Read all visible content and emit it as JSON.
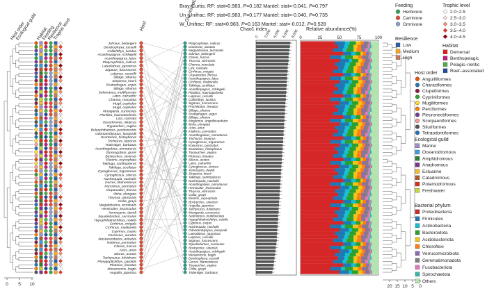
{
  "stats": [
    {
      "label": "Bray-Curtis: RF: stat=0.983, ",
      "p1": "P",
      "v1": "=0.182 Mantel: stat=-0.041, ",
      "p2": "P",
      "v2": "=0.797"
    },
    {
      "label": "Un_Unifrac: RF: stat=0.983, ",
      "p1": "P",
      "v1": "=0.177 Mantel: stat=-0.040, ",
      "p2": "P",
      "v2": "=0.735"
    },
    {
      "label": "W_Unifrac: RF: stat=0.983, ",
      "p1": "P",
      "v1": "=0.163 Mantel: stat=-0.012, ",
      "p2": "P",
      "v2": "=0.528"
    }
  ],
  "headers": {
    "host": "Host",
    "gut": "Gut microbiota",
    "chao": "Chao1 index",
    "rel": "Relative abundance(%)",
    "trophic_cols": [
      "Trophic level",
      "Resilience",
      "Feeding",
      "Habitat"
    ],
    "eco_cols": [
      "Ecological guild",
      "Host order"
    ]
  },
  "host_species": [
    "Johnius_belangerii",
    "Dendrophysa_russelli",
    "Collichthys_lucidus",
    "Acanthopagrus_schlegelii",
    "Acanthopagrus_latus",
    "Platycephalus_indicus",
    "Lateolabrax_japonicus",
    "Siganus_fuscescens",
    "Lutjanus_russellii",
    "Sillago_sihama",
    "Siniperca_knerii",
    "Scatophagus_argus",
    "Sillago_sihama",
    "Selenotoca_multifasciata",
    "Lates_calcarifer",
    "Channa_maculata",
    "Mugil_cephalus",
    "Mugil_cephalus",
    "Mooigarda_cunnesius",
    "Planiliza_haematocheila",
    "Liza_carinata",
    "Oreochromis_niloticus",
    "Trypauchen_vagina",
    "Boleophthalmus_pectinirostris",
    "Odontamblyopus_lacepedii",
    "Scartelaos_histophorus",
    "Trichiurus_lepturus",
    "Tridentiger_barbatus",
    "Acanthogobius_ommaturus",
    "Glossogobius_giuris",
    "Bostrychus_sinensis",
    "Eleotris_oxycephala",
    "Takifugu_xanthopterus",
    "Takifugu_ocellatus",
    "Cynoglossus_trigrammus",
    "Cynoglossus_sinicus",
    "Nuchequula_nuchalis",
    "Gerres_filamentosus",
    "Konosirus_punctatus",
    "Clupanodon_thrissa",
    "Ilisha_elongata",
    "Thryssa_vitrirostris",
    "Coilia_grayii",
    "Megalobrama_terminalis",
    "Hemiculter_leucisculus",
    "Xenocypris_davidi",
    "Squaliobarbus_curriculus",
    "Hypophthalmichthys_nobilis",
    "Cirrhinus_mrigala",
    "Cirrhinus_molitorella",
    "Cyprinus_carpio",
    "Carassius_auratus",
    "Mastacembelus_armatus",
    "Ictalurus_punctatus",
    "Clarias_fuscus",
    "Arius_arius",
    "Silurus_asotus",
    "Tachysurus_fulvidraco",
    "Pterygoplichthys_pardalis",
    "Plotosus_lineatus",
    "Muraenesox_bagio",
    "Anguilla_japonica"
  ],
  "gut_species": [
    "Platycephalus_indicus",
    "Carassius_auratus",
    "Megalobrama_terminalis",
    "Johnius_belangerii",
    "Clarias_fuscus",
    "Thryssa_vitrirostris",
    "Channa_maculata",
    "Liza_carinata",
    "Cirrhinus_mrigala",
    "Clupanodon_thrissa",
    "Acanthopagrus_latus",
    "Cirrhinus_molitorella",
    "Takifugu_ocellatus",
    "Acanthopagrus_schlegelii",
    "Planiliza_haematocheila",
    "Lutjanus_russellii",
    "Collichthys_lucidus",
    "Siganus_fuscescens",
    "Prochilodus_lineatus",
    "Sillago_sihama",
    "Scatophagus_argus",
    "Sillago_sihama",
    "Misgurnus_anguillicaudatus",
    "Ilisha_elongata",
    "Arius_arius",
    "Ictalurus_punctatus",
    "Acanthogobius_ommaturus",
    "Trichiurus_lepturus",
    "Cynoglossus_trigrammus",
    "Konosirus_punctatus",
    "Scartelaos_histophorus",
    "Trypauchen_vagina",
    "Plotosus_lineatus",
    "Silurus_asotus",
    "Lates_calcarifer",
    "Cynoglossus_sinicus",
    "Xenocypris_davidi",
    "Siniperca_knerii",
    "Takifugu_xanthopterus",
    "Nuchequula_nuchalis",
    "Acanthogobius_ommaturus",
    "Hemiculter_leucisculus",
    "Thryssa_vitrirostris",
    "Coilia_grayii",
    "Eleotris_oxycephala",
    "Bostrychus_sinensis",
    "Anguilla_japonica",
    "Tachysurus_fulvidraco",
    "Mooigarda_cunnesius",
    "Selenotoca_multifasciata",
    "Hypophthalmichthys_nobilis",
    "Cyprinus_carpio",
    "Nuchequula_nuchalis",
    "Odontamblyopus_lacepedii",
    "Lateolabrax_japonicus",
    "Lutjanus_russellii",
    "Siganus_fuscescens",
    "Squaliobarbus_curriculus",
    "Bostrychus_sinensis",
    "Acanthopagrus_schlegelii",
    "Muraenesox_bagio",
    "Dendrophysa_russelli",
    "Gerres_filamentosus",
    "Trypauchen_vagina",
    "Coilia_grayii",
    "Tridentiger_barbatus"
  ],
  "legend": {
    "feeding": {
      "title": "Feeding",
      "items": [
        {
          "label": "Herbivore",
          "color": "#2fa84f"
        },
        {
          "label": "Carnivore",
          "color": "#e64b35"
        },
        {
          "label": "Omnivore",
          "color": "#8da0cb"
        }
      ]
    },
    "resilience": {
      "title": "Resilience",
      "items": [
        {
          "label": "Low",
          "color": "#2b5fa8"
        },
        {
          "label": "Medium",
          "color": "#f5a623"
        },
        {
          "label": "High",
          "color": "#c9795b"
        }
      ]
    },
    "trophic": {
      "title": "Trophic level",
      "items": [
        {
          "label": "2.0~2.5",
          "color": "#ffffff"
        },
        {
          "label": "2.5~3.0",
          "color": "#fde0dd"
        },
        {
          "label": "3.0~3.5",
          "color": "#fc9272"
        },
        {
          "label": "3.5~4.0",
          "color": "#ef3b2c"
        },
        {
          "label": "4.0~4.5",
          "color": "#99000d"
        }
      ]
    },
    "habitat": {
      "title": "Habitat",
      "items": [
        {
          "label": "Demersal",
          "color": "#e41a1c"
        },
        {
          "label": "Benthopelagic",
          "color": "#c51b7d"
        },
        {
          "label": "Pelagic–neritic",
          "color": "#4daf4a"
        },
        {
          "label": "Reef–associated",
          "color": "#1f4e9c"
        }
      ]
    },
    "host_order": {
      "title": "Host order",
      "items": [
        {
          "label": "Anguilliformes",
          "color": "#e6550d"
        },
        {
          "label": "Characiformes",
          "color": "#1f78b4"
        },
        {
          "label": "Clupeiformes",
          "color": "#8c1d40"
        },
        {
          "label": "Cypriniformes",
          "color": "#33a02c"
        },
        {
          "label": "Mugiliformes",
          "color": "#ffdd33"
        },
        {
          "label": "Perciformes",
          "color": "#ff7f00"
        },
        {
          "label": "Pleuronectiformes",
          "color": "#6a3d9a"
        },
        {
          "label": "Scorpaeniformes",
          "color": "#fb9a99"
        },
        {
          "label": "Siluriformes",
          "color": "#555555"
        },
        {
          "label": "Tetraodontiformes",
          "color": "#2171b5"
        }
      ]
    },
    "eco_guild": {
      "title": "Ecological guild",
      "items": [
        {
          "label": "Marine",
          "color": "#9e8fc9"
        },
        {
          "label": "Oceanodromous",
          "color": "#3d9de0"
        },
        {
          "label": "Amphidromous",
          "color": "#2e7d32"
        },
        {
          "label": "Anadromous",
          "color": "#7b3294"
        },
        {
          "label": "Estuarine",
          "color": "#f2c12e"
        },
        {
          "label": "Catadromous",
          "color": "#b15928"
        },
        {
          "label": "Potamodromous",
          "color": "#d7301f"
        },
        {
          "label": "Freshwater",
          "color": "#c7d93a"
        }
      ]
    },
    "phylum": {
      "title": "Bacterial phylum",
      "items": [
        {
          "label": "Proteobacteria",
          "color": "#d62728"
        },
        {
          "label": "Firmicutes",
          "color": "#1f77b4"
        },
        {
          "label": "Actinobacteria",
          "color": "#17becf"
        },
        {
          "label": "Bacteroidota",
          "color": "#2ca02c"
        },
        {
          "label": "Acidobacteriota",
          "color": "#f2c31a"
        },
        {
          "label": "Chloroflexi",
          "color": "#ff7f0e"
        },
        {
          "label": "Verrucomicrobiota",
          "color": "#8c6bb1"
        },
        {
          "label": "Gemmatimonadota",
          "color": "#7f7f7f"
        },
        {
          "label": "Fusobacteriota",
          "color": "#e377c2"
        },
        {
          "label": "Spirochaetota",
          "color": "#3ab5a8"
        },
        {
          "label": "Others",
          "color": "#b5e3b0"
        }
      ]
    }
  },
  "axes": {
    "left_tree_ticks": [
      "0",
      "5",
      "10"
    ],
    "chao_ticks": [
      "0",
      "2,000",
      "4,000",
      "6,000",
      "8,000"
    ],
    "rel_ticks": [
      "0",
      "25",
      "50",
      "75",
      "100"
    ],
    "right_tree_ticks": [
      "20",
      "15",
      "10",
      "5",
      "0"
    ]
  },
  "chart_data": [
    {
      "type": "bar",
      "title": "Chao1 index",
      "categories": [
        "Platycephalus_indicus",
        "Carassius_auratus",
        "Megalobrama_terminalis",
        "Johnius_belangerii",
        "Clarias_fuscus",
        "Thryssa_vitrirostris",
        "Channa_maculata",
        "Liza_carinata",
        "Cirrhinus_mrigala",
        "Clupanodon_thrissa",
        "Acanthopagrus_latus",
        "Cirrhinus_molitorella",
        "Takifugu_ocellatus",
        "Acanthopagrus_schlegelii",
        "Planiliza_haematocheila",
        "Lutjanus_russellii",
        "Collichthys_lucidus",
        "Siganus_fuscescens",
        "Prochilodus_lineatus",
        "Sillago_sihama",
        "Scatophagus_argus",
        "Sillago_sihama",
        "Misgurnus_anguillicaudatus",
        "Ilisha_elongata",
        "Arius_arius",
        "Ictalurus_punctatus",
        "Acanthogobius_ommaturus",
        "Trichiurus_lepturus",
        "Cynoglossus_trigrammus",
        "Konosirus_punctatus",
        "Scartelaos_histophorus",
        "Trypauchen_vagina",
        "Plotosus_lineatus",
        "Silurus_asotus",
        "Lates_calcarifer",
        "Cynoglossus_sinicus",
        "Xenocypris_davidi",
        "Siniperca_knerii",
        "Takifugu_xanthopterus",
        "Nuchequula_nuchalis",
        "Acanthogobius_ommaturus",
        "Hemiculter_leucisculus",
        "Thryssa_vitrirostris",
        "Coilia_grayii",
        "Eleotris_oxycephala",
        "Bostrychus_sinensis",
        "Anguilla_japonica",
        "Tachysurus_fulvidraco",
        "Mooigarda_cunnesius",
        "Selenotoca_multifasciata",
        "Hypophthalmichthys_nobilis",
        "Cyprinus_carpio",
        "Nuchequula_nuchalis",
        "Odontamblyopus_lacepedii",
        "Lateolabrax_japonicus",
        "Lutjanus_russellii",
        "Siganus_fuscescens",
        "Squaliobarbus_curriculus",
        "Bostrychus_sinensis",
        "Acanthopagrus_schlegelii",
        "Muraenesox_bagio",
        "Dendrophysa_russelli",
        "Gerres_filamentosus",
        "Trypauchen_vagina",
        "Coilia_grayii",
        "Tridentiger_barbatus"
      ],
      "values": [
        7600,
        7500,
        7400,
        7300,
        7200,
        7200,
        7100,
        7000,
        7000,
        6900,
        6900,
        6800,
        6800,
        6700,
        6700,
        6600,
        6600,
        6500,
        6500,
        6400,
        6400,
        6300,
        6300,
        6200,
        6200,
        6100,
        6100,
        6000,
        6000,
        5900,
        5900,
        5800,
        5800,
        5700,
        5700,
        5600,
        5600,
        5500,
        5500,
        5400,
        5400,
        5300,
        5300,
        5200,
        5200,
        5100,
        5100,
        5000,
        5000,
        4900,
        4900,
        4800,
        4800,
        4700,
        4700,
        4600,
        4600,
        4500,
        4400,
        4300,
        4200,
        4100,
        4000,
        3900,
        3800,
        3600
      ],
      "xlim": [
        0,
        8000
      ]
    },
    {
      "type": "bar",
      "title": "Relative abundance(%)",
      "stacked": true,
      "xlim": [
        0,
        100
      ],
      "series_names": [
        "Proteobacteria",
        "Firmicutes",
        "Actinobacteria",
        "Bacteroidota",
        "Acidobacteriota",
        "Chloroflexi",
        "Verrucomicrobiota",
        "Gemmatimonadota",
        "Fusobacteriota",
        "Spirochaetota",
        "Others"
      ],
      "profiles": [
        [
          44,
          13,
          6,
          8,
          6,
          4,
          3,
          3,
          2,
          1,
          10
        ],
        [
          48,
          8,
          5,
          7,
          5,
          5,
          4,
          4,
          3,
          2,
          9
        ],
        [
          42,
          12,
          5,
          9,
          4,
          6,
          2,
          3,
          4,
          2,
          11
        ],
        [
          55,
          10,
          6,
          6,
          3,
          4,
          2,
          2,
          2,
          1,
          9
        ],
        [
          38,
          14,
          5,
          10,
          7,
          5,
          4,
          4,
          2,
          1,
          10
        ],
        [
          50,
          12,
          4,
          8,
          5,
          4,
          3,
          3,
          2,
          1,
          8
        ]
      ],
      "profile_index": [
        0,
        1,
        2,
        3,
        4,
        5,
        0,
        1,
        2,
        3,
        4,
        5,
        0,
        1,
        2,
        3,
        4,
        5,
        0,
        1,
        2,
        3,
        4,
        5,
        0,
        1,
        2,
        3,
        4,
        5,
        0,
        1,
        2,
        3,
        4,
        5,
        0,
        1,
        2,
        3,
        4,
        5,
        0,
        1,
        2,
        3,
        4,
        5,
        0,
        1,
        2,
        3,
        4,
        5,
        0,
        1,
        2,
        3,
        4,
        5,
        0,
        1,
        2,
        3,
        4,
        5
      ]
    }
  ]
}
